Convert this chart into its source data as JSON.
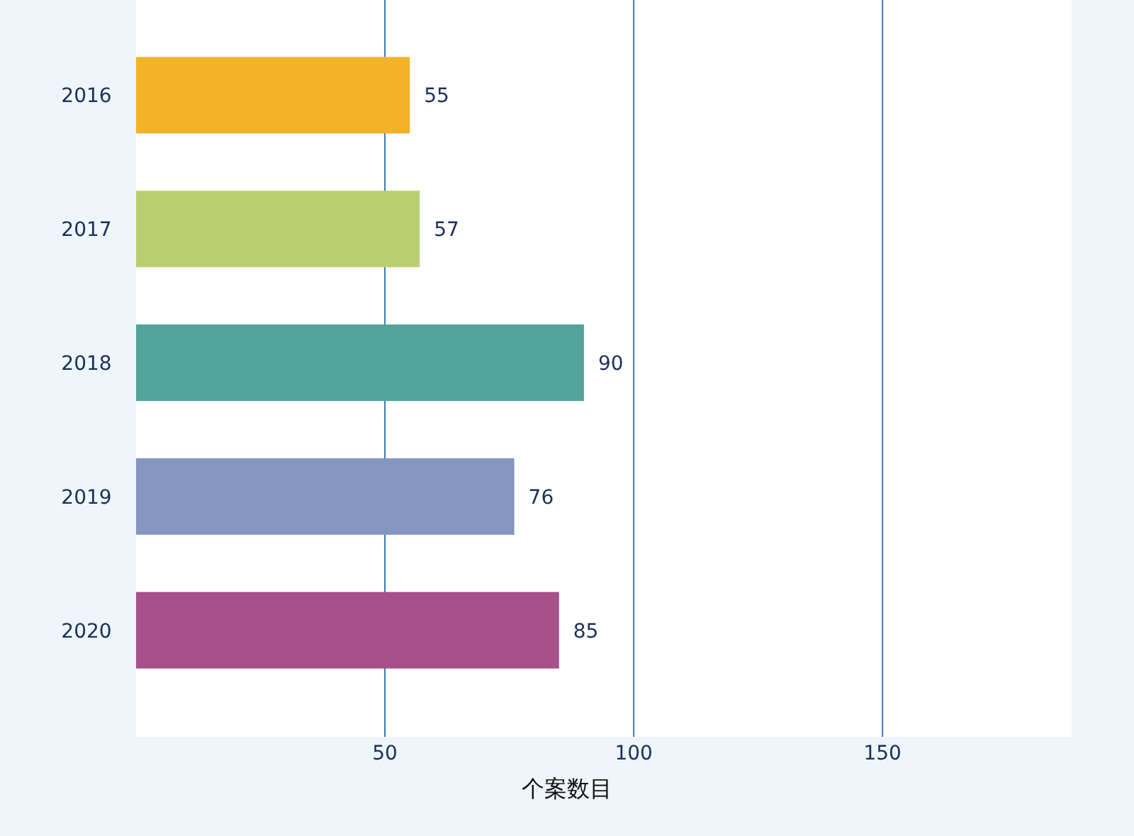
{
  "chart_data": {
    "type": "bar",
    "orientation": "horizontal",
    "xlabel": "个案数目",
    "categories": [
      "2016",
      "2017",
      "2018",
      "2019",
      "2020"
    ],
    "values": [
      55,
      57,
      90,
      76,
      85
    ],
    "colors": [
      "#f2b32a",
      "#b9cf70",
      "#52a39a",
      "#8497c0",
      "#a8508a"
    ],
    "xlim": [
      0,
      188
    ],
    "xticks": [
      50,
      100,
      150
    ],
    "grid": "x",
    "data_labels": true
  }
}
